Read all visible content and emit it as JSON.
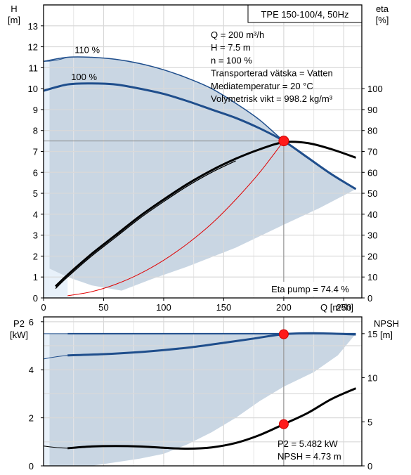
{
  "chart_data": [
    {
      "type": "line",
      "title": "TPE 150-100/4, 50Hz",
      "ylabel_left": "H\n[m]",
      "ylabel_right": "eta\n[%]",
      "xlabel": "Q [m³/h]",
      "xlim": [
        0,
        265
      ],
      "ylim_left": [
        0,
        14
      ],
      "ylim_right": [
        0,
        140
      ],
      "xticks": [
        "0",
        "50",
        "100",
        "150",
        "200",
        "250"
      ],
      "yticks_left": [
        "0",
        "1",
        "2",
        "3",
        "4",
        "5",
        "6",
        "7",
        "8",
        "9",
        "10",
        "11",
        "12",
        "13"
      ],
      "yticks_right": [
        "0",
        "10",
        "20",
        "30",
        "40",
        "50",
        "60",
        "70",
        "80",
        "90",
        "100"
      ],
      "grid": true,
      "info_lines": [
        "Q = 200 m³/h",
        "H = 7.5 m",
        "n = 100 %",
        "Transporterad vätska = Vatten",
        "Mediatemperatur = 20 °C",
        "Volymetrisk vikt = 998.2 kg/m³"
      ],
      "annotation": "Eta pump = 74.4 %",
      "series": [
        {
          "name": "110 %",
          "axis": "left",
          "color": "#1f4e8c",
          "x": [
            0,
            20,
            40,
            60,
            80,
            100,
            120,
            140,
            160,
            180,
            200,
            220,
            240,
            260
          ],
          "y": [
            11.3,
            11.5,
            11.5,
            11.4,
            11.2,
            10.9,
            10.5,
            10.0,
            9.3,
            8.5,
            7.5,
            6.7,
            5.9,
            5.2
          ]
        },
        {
          "name": "100 %",
          "axis": "left",
          "color": "#1f4e8c",
          "x": [
            0,
            20,
            40,
            60,
            80,
            100,
            120,
            140,
            160,
            180,
            200,
            220,
            240,
            260
          ],
          "y": [
            9.9,
            10.2,
            10.25,
            10.2,
            10.0,
            9.75,
            9.4,
            9.0,
            8.6,
            8.1,
            7.5,
            6.7,
            5.9,
            5.2
          ]
        },
        {
          "name": "",
          "axis": "right",
          "color": "#000000",
          "x": [
            10,
            20,
            40,
            60,
            80,
            100,
            120,
            140,
            160,
            180,
            200,
            220,
            240,
            260
          ],
          "y": [
            5.5,
            11,
            21,
            30,
            39,
            47,
            54.5,
            61,
            66.5,
            71,
            74.4,
            74,
            71,
            67
          ]
        },
        {
          "name": "",
          "axis": "left",
          "color": "#e00000",
          "x": [
            20,
            40,
            60,
            80,
            100,
            120,
            140,
            160,
            180,
            200
          ],
          "y": [
            0.1,
            0.3,
            0.65,
            1.15,
            1.8,
            2.6,
            3.55,
            4.7,
            6.0,
            7.5
          ]
        }
      ],
      "duty_point": {
        "x": 200,
        "y": 7.5
      }
    },
    {
      "type": "line",
      "ylabel_left": "P2\n[kW]",
      "ylabel_right": "NPSH\n[m]",
      "xlim": [
        0,
        265
      ],
      "ylim_left": [
        0,
        6.2
      ],
      "ylim_right": [
        0,
        16.9
      ],
      "yticks_left": [
        "0",
        "2",
        "4",
        "6"
      ],
      "yticks_right": [
        "0",
        "5",
        "10",
        "15"
      ],
      "grid": true,
      "annotation_lines": [
        "P2 = 5.482 kW",
        "NPSH = 4.73 m"
      ],
      "series": [
        {
          "name": "",
          "axis": "left",
          "color": "#1f4e8c",
          "x": [
            20,
            50,
            100,
            150,
            200,
            220,
            240,
            260
          ],
          "y": [
            5.5,
            5.5,
            5.5,
            5.5,
            5.5,
            5.5,
            5.5,
            5.5
          ]
        },
        {
          "name": "",
          "axis": "left",
          "color": "#1f4e8c",
          "x": [
            20,
            50,
            75,
            100,
            125,
            150,
            175,
            200,
            225,
            260
          ],
          "y": [
            4.6,
            4.65,
            4.72,
            4.82,
            4.95,
            5.12,
            5.3,
            5.48,
            5.52,
            5.47
          ]
        },
        {
          "name": "",
          "axis": "right",
          "color": "#000000",
          "x": [
            20,
            40,
            60,
            80,
            100,
            120,
            140,
            160,
            180,
            200,
            220,
            240,
            260
          ],
          "y": [
            2.0,
            2.2,
            2.25,
            2.2,
            2.05,
            1.95,
            2.1,
            2.6,
            3.5,
            4.73,
            6.0,
            7.6,
            8.8
          ]
        }
      ],
      "duty_points": [
        {
          "axis": "left",
          "x": 200,
          "y": 5.48
        },
        {
          "axis": "right",
          "x": 200,
          "y": 4.73
        }
      ]
    }
  ]
}
